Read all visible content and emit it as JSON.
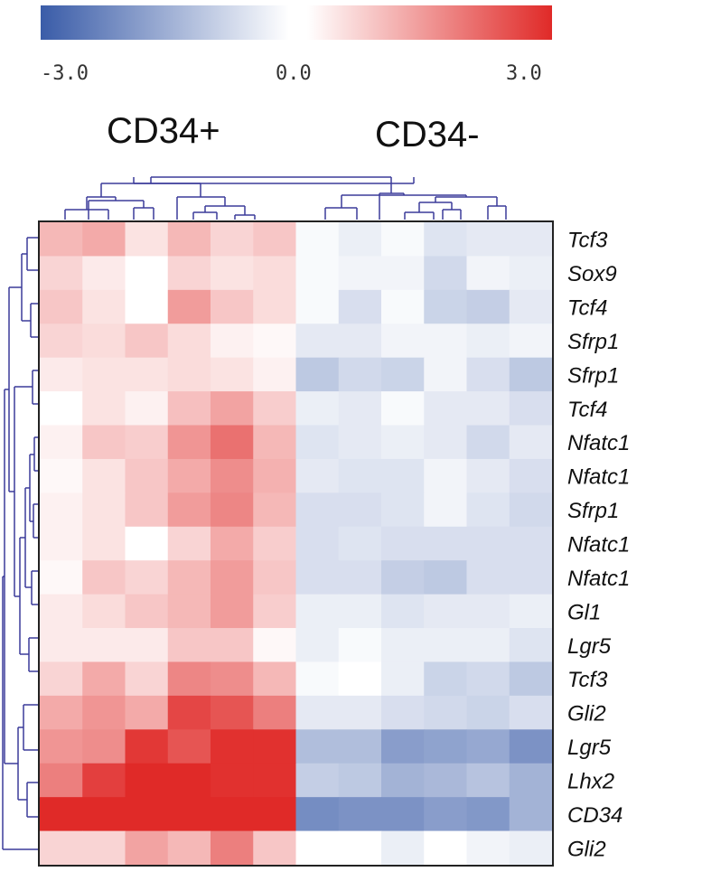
{
  "chart_data": {
    "type": "heatmap",
    "color_scale": {
      "min": -3.0,
      "mid": 0.0,
      "max": 3.0,
      "tick_labels": [
        "-3.0",
        "0.0",
        "3.0"
      ],
      "low_color": "#3a5ca8",
      "mid_color": "#ffffff",
      "high_color": "#e02a28"
    },
    "column_groups": [
      {
        "label": "CD34+",
        "columns": 6
      },
      {
        "label": "CD34-",
        "columns": 6
      }
    ],
    "rows": [
      "Tcf3",
      "Sox9",
      "Tcf4",
      "Sfrp1",
      "Sfrp1",
      "Tcf4",
      "Nfatc1",
      "Nfatc1",
      "Sfrp1",
      "Nfatc1",
      "Nfatc1",
      "Gl1",
      "Lgr5",
      "Tcf3",
      "Gli2",
      "Lgr5",
      "Lhx2",
      "CD34",
      "Gli2"
    ],
    "values": [
      [
        1.0,
        1.2,
        0.4,
        1.0,
        0.6,
        0.8,
        -0.1,
        -0.3,
        -0.1,
        -0.5,
        -0.4,
        -0.4
      ],
      [
        0.6,
        0.3,
        0.0,
        0.6,
        0.4,
        0.5,
        -0.1,
        -0.2,
        -0.2,
        -0.7,
        -0.2,
        -0.3
      ],
      [
        0.8,
        0.4,
        0.0,
        1.4,
        0.8,
        0.5,
        -0.1,
        -0.6,
        -0.1,
        -0.8,
        -0.9,
        -0.4
      ],
      [
        0.6,
        0.5,
        0.8,
        0.5,
        0.2,
        0.1,
        -0.4,
        -0.4,
        -0.2,
        -0.2,
        -0.3,
        -0.2
      ],
      [
        0.3,
        0.4,
        0.4,
        0.5,
        0.4,
        0.2,
        -1.0,
        -0.7,
        -0.8,
        -0.2,
        -0.6,
        -1.0
      ],
      [
        0.0,
        0.4,
        0.2,
        0.9,
        1.3,
        0.7,
        -0.3,
        -0.4,
        -0.1,
        -0.4,
        -0.4,
        -0.6
      ],
      [
        0.2,
        0.8,
        0.7,
        1.5,
        2.0,
        1.0,
        -0.5,
        -0.4,
        -0.3,
        -0.4,
        -0.7,
        -0.4
      ],
      [
        0.1,
        0.4,
        0.8,
        1.2,
        1.6,
        1.1,
        -0.4,
        -0.5,
        -0.5,
        -0.2,
        -0.4,
        -0.6
      ],
      [
        0.2,
        0.4,
        0.8,
        1.4,
        1.7,
        1.0,
        -0.6,
        -0.6,
        -0.5,
        -0.2,
        -0.5,
        -0.7
      ],
      [
        0.2,
        0.4,
        0.0,
        0.6,
        1.2,
        0.7,
        -0.6,
        -0.5,
        -0.6,
        -0.6,
        -0.6,
        -0.6
      ],
      [
        0.1,
        0.8,
        0.6,
        1.0,
        1.4,
        0.8,
        -0.6,
        -0.6,
        -0.9,
        -1.0,
        -0.6,
        -0.6
      ],
      [
        0.3,
        0.5,
        0.8,
        1.0,
        1.4,
        0.7,
        -0.3,
        -0.3,
        -0.5,
        -0.4,
        -0.4,
        -0.3
      ],
      [
        0.3,
        0.3,
        0.3,
        0.8,
        0.8,
        0.1,
        -0.3,
        -0.1,
        -0.3,
        -0.3,
        -0.3,
        -0.5
      ],
      [
        0.6,
        1.2,
        0.6,
        1.7,
        1.6,
        1.0,
        -0.1,
        0.0,
        -0.3,
        -0.8,
        -0.7,
        -1.0
      ],
      [
        1.2,
        1.5,
        1.2,
        2.6,
        2.4,
        1.8,
        -0.4,
        -0.4,
        -0.6,
        -0.7,
        -0.8,
        -0.6
      ],
      [
        1.5,
        1.6,
        2.8,
        2.4,
        2.9,
        2.9,
        -1.2,
        -1.2,
        -1.8,
        -1.7,
        -1.6,
        -2.0
      ],
      [
        1.8,
        2.7,
        3.0,
        3.0,
        2.9,
        2.9,
        -0.9,
        -1.0,
        -1.4,
        -1.3,
        -1.1,
        -1.4
      ],
      [
        3.0,
        3.0,
        3.0,
        3.0,
        3.0,
        3.0,
        -2.1,
        -2.0,
        -2.0,
        -1.8,
        -1.9,
        -1.4
      ],
      [
        0.6,
        0.6,
        1.3,
        1.0,
        1.8,
        0.8,
        0.0,
        0.0,
        -0.3,
        0.0,
        -0.2,
        -0.3
      ]
    ],
    "dendrogram_color": "#3b3b9a",
    "grid": false,
    "legend": "top"
  }
}
